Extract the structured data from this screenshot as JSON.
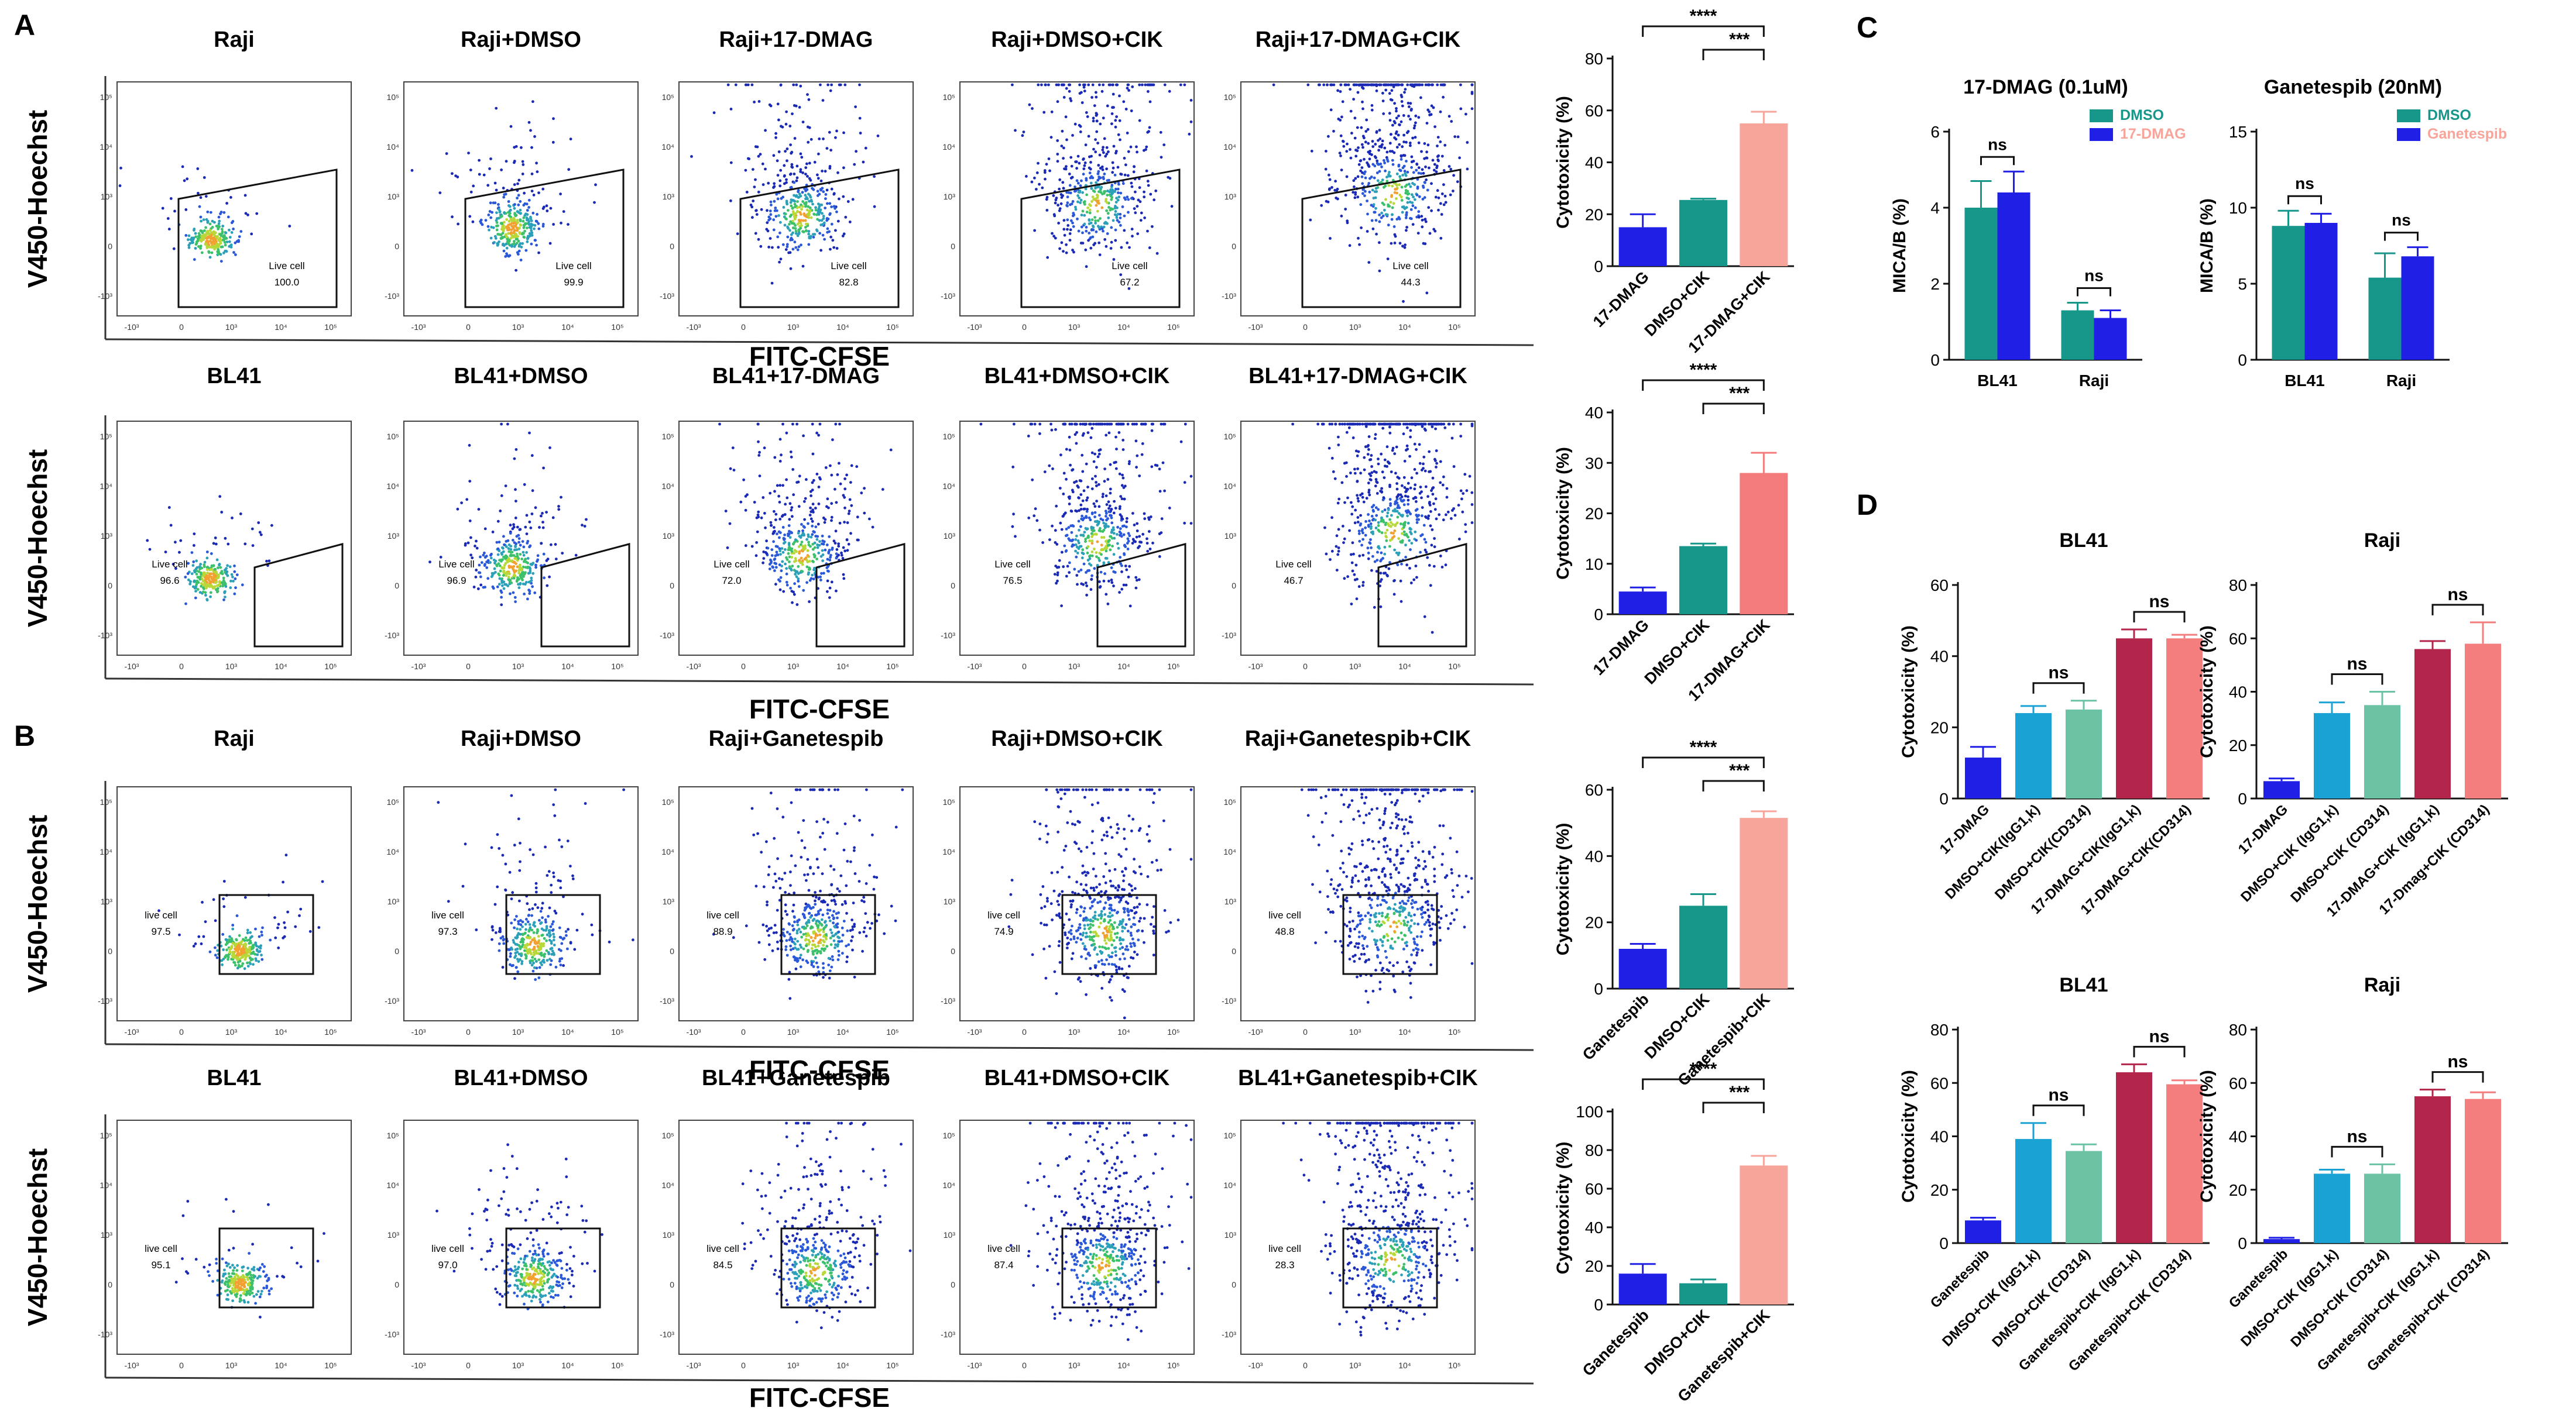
{
  "panel_labels": [
    "A",
    "B",
    "C",
    "D"
  ],
  "flow_rows": [
    {
      "id": "A1",
      "ylabel": "V450-Hoechst",
      "xlabel": "FITC-CFSE",
      "gate_shape": "polygon",
      "plots": [
        {
          "title": "Raji",
          "gate_label": "Live cell",
          "gate_value": "100.0"
        },
        {
          "title": "Raji+DMSO",
          "gate_label": "Live cell",
          "gate_value": "99.9"
        },
        {
          "title": "Raji+17-DMAG",
          "gate_label": "Live cell",
          "gate_value": "82.8"
        },
        {
          "title": "Raji+DMSO+CIK",
          "gate_label": "Live cell",
          "gate_value": "67.2"
        },
        {
          "title": "Raji+17-DMAG+CIK",
          "gate_label": "Live cell",
          "gate_value": "44.3"
        }
      ]
    },
    {
      "id": "A2",
      "ylabel": "V450-Hoechst",
      "xlabel": "FITC-CFSE",
      "gate_shape": "polygon",
      "plots": [
        {
          "title": "BL41",
          "gate_label": "Live cell",
          "gate_value": "96.6"
        },
        {
          "title": "BL41+DMSO",
          "gate_label": "Live cell",
          "gate_value": "96.9"
        },
        {
          "title": "BL41+17-DMAG",
          "gate_label": "Live cell",
          "gate_value": "72.0"
        },
        {
          "title": "BL41+DMSO+CIK",
          "gate_label": "Live cell",
          "gate_value": "76.5"
        },
        {
          "title": "BL41+17-DMAG+CIK",
          "gate_label": "Live cell",
          "gate_value": "46.7"
        }
      ]
    },
    {
      "id": "B1",
      "ylabel": "V450-Hoechst",
      "xlabel": "FITC-CFSE",
      "gate_shape": "rect",
      "plots": [
        {
          "title": "Raji",
          "gate_label": "live cell",
          "gate_value": "97.5"
        },
        {
          "title": "Raji+DMSO",
          "gate_label": "live cell",
          "gate_value": "97.3"
        },
        {
          "title": "Raji+Ganetespib",
          "gate_label": "live cell",
          "gate_value": "88.9"
        },
        {
          "title": "Raji+DMSO+CIK",
          "gate_label": "live cell",
          "gate_value": "74.9"
        },
        {
          "title": "Raji+Ganetespib+CIK",
          "gate_label": "live cell",
          "gate_value": "48.8"
        }
      ]
    },
    {
      "id": "B2",
      "ylabel": "V450-Hoechst",
      "xlabel": "FITC-CFSE",
      "gate_shape": "rect",
      "plots": [
        {
          "title": "BL41",
          "gate_label": "live cell",
          "gate_value": "95.1"
        },
        {
          "title": "BL41+DMSO",
          "gate_label": "live cell",
          "gate_value": "97.0"
        },
        {
          "title": "BL41+Ganetespib",
          "gate_label": "live cell",
          "gate_value": "84.5"
        },
        {
          "title": "BL41+DMSO+CIK",
          "gate_label": "live cell",
          "gate_value": "87.4"
        },
        {
          "title": "BL41+Ganetespib+CIK",
          "gate_label": "live cell",
          "gate_value": "28.3"
        }
      ]
    }
  ],
  "axis_ticks": {
    "x": [
      "-10³",
      "0",
      "10³",
      "10⁴",
      "10⁵"
    ],
    "y": [
      "10⁵",
      "10⁴",
      "10³",
      "0",
      "-10³"
    ]
  },
  "colors": {
    "blue": "#1f1fe6",
    "teal": "#17968a",
    "salmon": "#f7a49a",
    "pinkred": "#f47b7b",
    "lightblue": "#1aa2d4",
    "mint": "#6cc3a3",
    "crimson": "#b3254b",
    "coral": "#f47e7e"
  },
  "chart_data": [
    {
      "id": "A1",
      "type": "bar",
      "ylabel": "Cytotoxicity (%)",
      "ylim": [
        0,
        80
      ],
      "yticks": [
        0,
        20,
        40,
        60,
        80
      ],
      "categories": [
        "17-DMAG",
        "DMSO+CIK",
        "17-DMAG+CIK"
      ],
      "values": [
        15,
        25.5,
        55
      ],
      "errors": [
        5,
        0.5,
        4.5
      ],
      "colors": [
        "#1f1fe6",
        "#17968a",
        "#f7a49a"
      ],
      "brackets": [
        {
          "from": 0,
          "to": 2,
          "label": "****"
        },
        {
          "from": 1,
          "to": 2,
          "label": "***"
        }
      ]
    },
    {
      "id": "A2",
      "type": "bar",
      "ylabel": "Cytotoxicity (%)",
      "ylim": [
        0,
        40
      ],
      "yticks": [
        0,
        10,
        20,
        30,
        40
      ],
      "categories": [
        "17-DMAG",
        "DMSO+CIK",
        "17-DMAG+CIK"
      ],
      "values": [
        4.5,
        13.5,
        28
      ],
      "errors": [
        0.8,
        0.5,
        4
      ],
      "colors": [
        "#1f1fe6",
        "#17968a",
        "#f47b7b"
      ],
      "brackets": [
        {
          "from": 0,
          "to": 2,
          "label": "****"
        },
        {
          "from": 1,
          "to": 2,
          "label": "***"
        }
      ]
    },
    {
      "id": "B1",
      "type": "bar",
      "ylabel": "Cytotoxicity (%)",
      "ylim": [
        0,
        60
      ],
      "yticks": [
        0,
        20,
        40,
        60
      ],
      "categories": [
        "Ganetespib",
        "DMSO+CIK",
        "Ganetespib+CIK"
      ],
      "values": [
        12,
        25,
        51.5
      ],
      "errors": [
        1.5,
        3.5,
        2
      ],
      "colors": [
        "#1f1fe6",
        "#17968a",
        "#f7a49a"
      ],
      "brackets": [
        {
          "from": 0,
          "to": 2,
          "label": "****"
        },
        {
          "from": 1,
          "to": 2,
          "label": "***"
        }
      ]
    },
    {
      "id": "B2",
      "type": "bar",
      "ylabel": "Cytotoxicity (%)",
      "ylim": [
        0,
        100
      ],
      "yticks": [
        0,
        20,
        40,
        60,
        80,
        100
      ],
      "categories": [
        "Ganetespib",
        "DMSO+CIK",
        "Ganetespib+CIK"
      ],
      "values": [
        16,
        11,
        72
      ],
      "errors": [
        5,
        2,
        5
      ],
      "colors": [
        "#1f1fe6",
        "#17968a",
        "#f7a49a"
      ],
      "brackets": [
        {
          "from": 0,
          "to": 2,
          "label": "****"
        },
        {
          "from": 1,
          "to": 2,
          "label": "***"
        }
      ]
    },
    {
      "id": "C1",
      "type": "bar",
      "title": "17-DMAG (0.1uM)",
      "ylabel": "MICA/B (%)",
      "ylim": [
        0,
        6
      ],
      "yticks": [
        0,
        2,
        4,
        6
      ],
      "categories": [
        "BL41",
        "Raji"
      ],
      "series": [
        {
          "name": "DMSO",
          "values": [
            4.0,
            1.3
          ],
          "errors": [
            0.7,
            0.2
          ],
          "color": "#17968a"
        },
        {
          "name": "17-DMAG",
          "values": [
            4.4,
            1.1
          ],
          "errors": [
            0.55,
            0.2
          ],
          "color": "#1f1fe6"
        }
      ],
      "legend_colors": [
        "#17968a",
        "#f7a49a"
      ],
      "brackets": [
        {
          "group": 0,
          "label": "ns"
        },
        {
          "group": 1,
          "label": "ns"
        }
      ]
    },
    {
      "id": "C2",
      "type": "bar",
      "title": "Ganetespib (20nM)",
      "ylabel": "MICA/B (%)",
      "ylim": [
        0,
        15
      ],
      "yticks": [
        0,
        5,
        10,
        15
      ],
      "categories": [
        "BL41",
        "Raji"
      ],
      "series": [
        {
          "name": "DMSO",
          "values": [
            8.8,
            5.4
          ],
          "errors": [
            1,
            1.6
          ],
          "color": "#17968a"
        },
        {
          "name": "Ganetespib",
          "values": [
            9.0,
            6.8
          ],
          "errors": [
            0.6,
            0.6
          ],
          "color": "#1f1fe6"
        }
      ],
      "legend_colors": [
        "#17968a",
        "#f7a49a"
      ],
      "brackets": [
        {
          "group": 0,
          "label": "ns"
        },
        {
          "group": 1,
          "label": "ns"
        }
      ]
    },
    {
      "id": "D1",
      "type": "bar",
      "title": "BL41",
      "ylabel": "Cytotoxicity (%)",
      "ylim": [
        0,
        60
      ],
      "yticks": [
        0,
        20,
        40,
        60
      ],
      "categories": [
        "17-DMAG",
        "DMSO+CIK(IgG1,k)",
        "DMSO+CIK(CD314)",
        "17-DMAG+CIK(IgG1,k)",
        "17-DMAG+CIK(CD314)"
      ],
      "values": [
        11.5,
        24,
        25,
        45,
        45
      ],
      "errors": [
        3,
        2,
        2.5,
        2.5,
        1
      ],
      "colors": [
        "#1f1fe6",
        "#1aa2d4",
        "#6cc3a3",
        "#b3254b",
        "#f47e7e"
      ],
      "brackets": [
        {
          "from": 1,
          "to": 2,
          "label": "ns"
        },
        {
          "from": 3,
          "to": 4,
          "label": "ns"
        }
      ]
    },
    {
      "id": "D2",
      "type": "bar",
      "title": "Raji",
      "ylabel": "Cytotoxicity (%)",
      "ylim": [
        0,
        80
      ],
      "yticks": [
        0,
        20,
        40,
        60,
        80
      ],
      "categories": [
        "17-DMAG",
        "DMSO+CIK (IgG1,k)",
        "DMSO+CIK (CD314)",
        "17-DMAG+CIK (IgG1,k)",
        "17-Dmag+CIK (CD314)"
      ],
      "values": [
        6.5,
        32,
        35,
        56,
        58
      ],
      "errors": [
        1,
        4,
        5,
        3,
        8
      ],
      "colors": [
        "#1f1fe6",
        "#1aa2d4",
        "#6cc3a3",
        "#b3254b",
        "#f47e7e"
      ],
      "brackets": [
        {
          "from": 1,
          "to": 2,
          "label": "ns"
        },
        {
          "from": 3,
          "to": 4,
          "label": "ns"
        }
      ]
    },
    {
      "id": "D3",
      "type": "bar",
      "title": "BL41",
      "ylabel": "Cytotoxicity (%)",
      "ylim": [
        0,
        80
      ],
      "yticks": [
        0,
        20,
        40,
        60,
        80
      ],
      "categories": [
        "Ganetespib",
        "DMSO+CIK (IgG1,k)",
        "DMSO+CIK (CD314)",
        "Ganetespib+CIK (IgG1,k)",
        "Ganetespib+CIK (CD314)"
      ],
      "values": [
        8.5,
        39,
        34.5,
        64,
        59.5
      ],
      "errors": [
        1,
        6,
        2.5,
        3,
        1.5
      ],
      "colors": [
        "#1f1fe6",
        "#1aa2d4",
        "#6cc3a3",
        "#b3254b",
        "#f47e7e"
      ],
      "brackets": [
        {
          "from": 1,
          "to": 2,
          "label": "ns"
        },
        {
          "from": 3,
          "to": 4,
          "label": "ns"
        }
      ]
    },
    {
      "id": "D4",
      "type": "bar",
      "title": "Raji",
      "ylabel": "Cytotoxicity (%)",
      "ylim": [
        0,
        80
      ],
      "yticks": [
        0,
        20,
        40,
        60,
        80
      ],
      "categories": [
        "Ganetespib",
        "DMSO+CIK (IgG1,k)",
        "DMSO+CIK (CD314)",
        "Ganetespib+CIK (IgG1,k)",
        "Ganetespib+CIK (CD314)"
      ],
      "values": [
        1.5,
        26,
        26,
        55,
        54
      ],
      "errors": [
        0.5,
        1.5,
        3.5,
        2.5,
        2.5
      ],
      "colors": [
        "#1f1fe6",
        "#1aa2d4",
        "#6cc3a3",
        "#b3254b",
        "#f47e7e"
      ],
      "brackets": [
        {
          "from": 1,
          "to": 2,
          "label": "ns"
        },
        {
          "from": 3,
          "to": 4,
          "label": "ns"
        }
      ]
    }
  ]
}
